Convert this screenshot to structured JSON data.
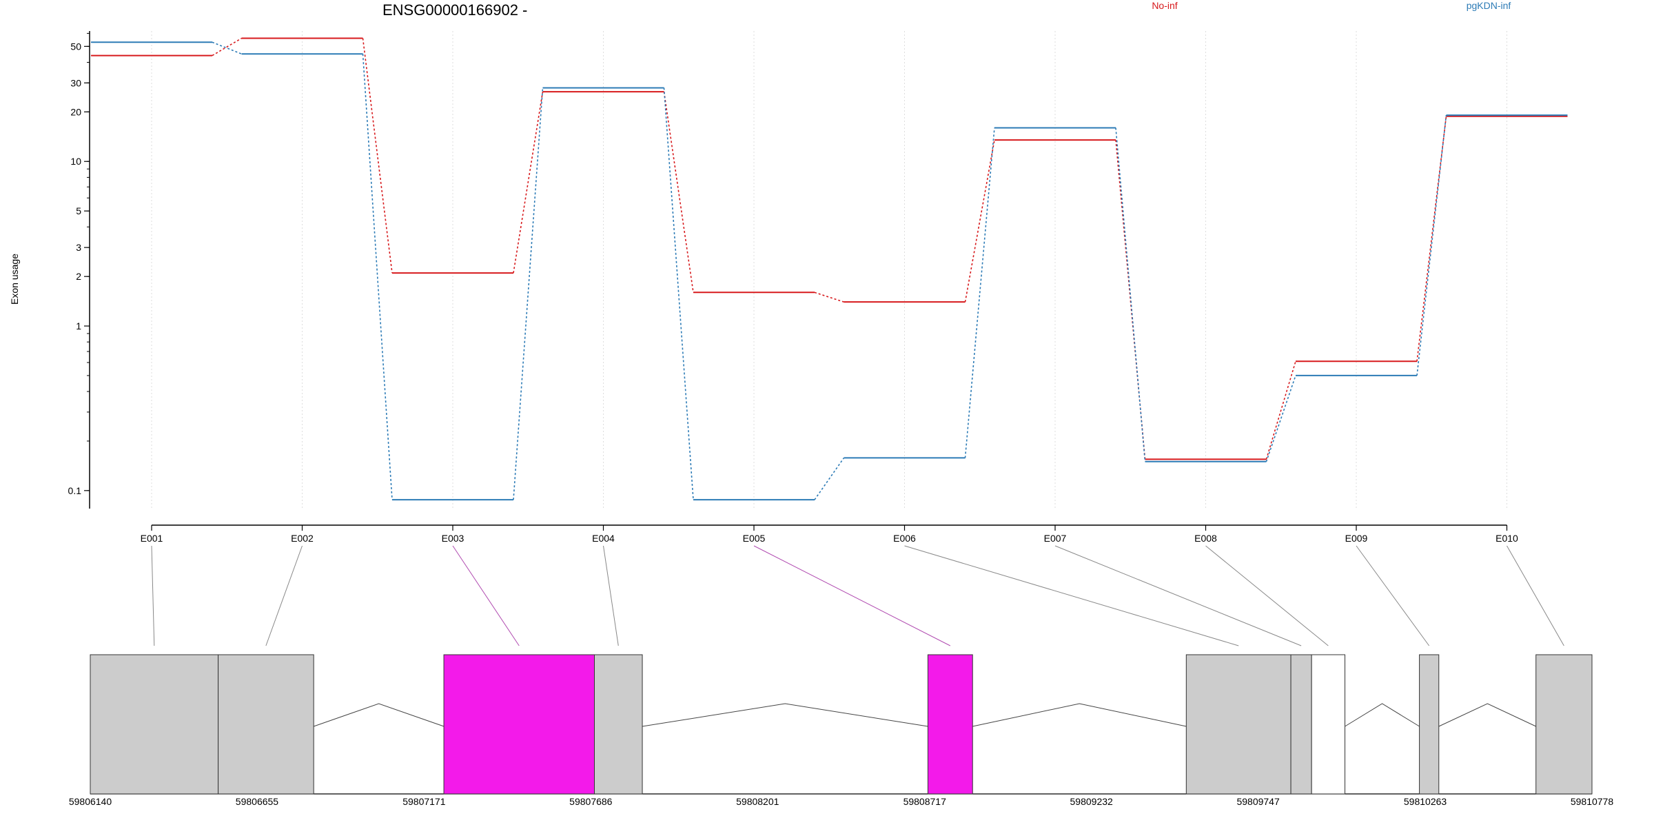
{
  "title": "ENSG00000166902 -",
  "legend": [
    {
      "name": "No-inf",
      "color": "#d7191c"
    },
    {
      "name": "pgKDN-inf",
      "color": "#2c7bb6"
    }
  ],
  "chart_data": {
    "type": "line",
    "title": "ENSG00000166902 -",
    "ylabel": "Exon usage",
    "xlabel": "",
    "yscale": "log",
    "ylim": [
      0.08,
      62
    ],
    "yticks": [
      {
        "value": 0.1,
        "label": "0.1"
      },
      {
        "value": 1,
        "label": "1"
      },
      {
        "value": 2,
        "label": "2"
      },
      {
        "value": 3,
        "label": "3"
      },
      {
        "value": 5,
        "label": "5"
      },
      {
        "value": 10,
        "label": "10"
      },
      {
        "value": 20,
        "label": "20"
      },
      {
        "value": 30,
        "label": "30"
      },
      {
        "value": 50,
        "label": "50"
      }
    ],
    "categories": [
      "E001",
      "E002",
      "E003",
      "E004",
      "E005",
      "E006",
      "E007",
      "E008",
      "E009",
      "E010"
    ],
    "series": [
      {
        "name": "No-inf",
        "color": "#d7191c",
        "values": [
          44,
          56,
          2.1,
          26.5,
          1.6,
          1.4,
          13.5,
          0.155,
          0.61,
          18.8
        ]
      },
      {
        "name": "pgKDN-inf",
        "color": "#2c7bb6",
        "values": [
          53,
          45,
          0.088,
          28,
          0.088,
          0.158,
          16,
          0.15,
          0.5,
          19.1
        ]
      }
    ],
    "grid": "vertical dotted",
    "legend_placement": "top-right"
  },
  "gene_model": {
    "coords": [
      "59806140",
      "59806655",
      "59807171",
      "59807686",
      "59808201",
      "59808717",
      "59809232",
      "59809747",
      "59810263",
      "59810778"
    ],
    "genomic_start": 59806140,
    "genomic_end": 59810778,
    "exons": [
      {
        "id": "E001",
        "start": 59806140,
        "end": 59806535,
        "highlight": false
      },
      {
        "id": "E002",
        "start": 59806535,
        "end": 59806830,
        "highlight": false
      },
      {
        "id": "E003",
        "start": 59807232,
        "end": 59807697,
        "highlight": true
      },
      {
        "id": "E004",
        "start": 59807697,
        "end": 59807845,
        "highlight": false
      },
      {
        "id": "E005",
        "start": 59808727,
        "end": 59808865,
        "highlight": true
      },
      {
        "id": "E006",
        "start": 59809525,
        "end": 59809848,
        "highlight": false
      },
      {
        "id": "E007",
        "start": 59809848,
        "end": 59809912,
        "highlight": false
      },
      {
        "id": "E008",
        "start": 59809912,
        "end": 59810015,
        "highlight": false,
        "empty": true
      },
      {
        "id": "E009",
        "start": 59810245,
        "end": 59810305,
        "highlight": false
      },
      {
        "id": "E010",
        "start": 59810605,
        "end": 59810778,
        "highlight": false
      }
    ],
    "colors": {
      "exon": "#cccccc",
      "highlight": "#f31aea",
      "empty": "#ffffff",
      "connector": "#888888",
      "highlight_connector": "#b04ab0"
    }
  }
}
